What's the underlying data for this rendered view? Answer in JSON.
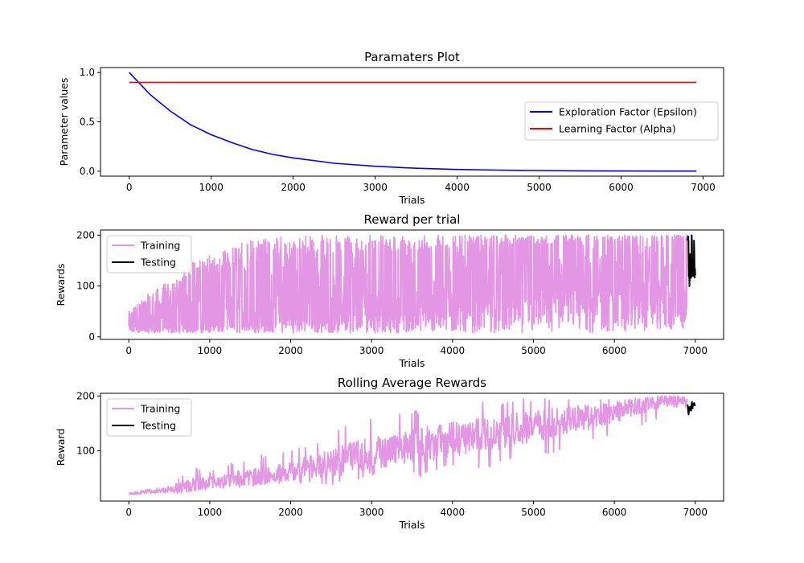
{
  "chart_data": [
    {
      "type": "line",
      "title": "Paramaters Plot",
      "xlabel": "Trials",
      "ylabel": "Parameter values",
      "xlim": [
        -350,
        7250
      ],
      "ylim": [
        -0.05,
        1.05
      ],
      "xticks": [
        0,
        1000,
        2000,
        3000,
        4000,
        5000,
        6000,
        7000
      ],
      "yticks": [
        0.0,
        0.5,
        1.0
      ],
      "ytick_labels": [
        "0.0",
        "0.5",
        "1.0"
      ],
      "grid": false,
      "legend": "center-right",
      "series": [
        {
          "name": "Exploration Factor (Epsilon)",
          "color": "#0000ff",
          "x": [
            0,
            250,
            500,
            750,
            1000,
            1250,
            1500,
            1750,
            2000,
            2500,
            3000,
            3500,
            4000,
            4500,
            5000,
            5500,
            6000,
            6500,
            6920
          ],
          "y": [
            1.0,
            0.78,
            0.61,
            0.47,
            0.37,
            0.29,
            0.22,
            0.17,
            0.135,
            0.08,
            0.05,
            0.03,
            0.018,
            0.011,
            0.007,
            0.004,
            0.002,
            0.001,
            0.001
          ]
        },
        {
          "name": "Learning Factor (Alpha)",
          "color": "#ff0000",
          "x": [
            0,
            6920
          ],
          "y": [
            0.9,
            0.9
          ]
        }
      ]
    },
    {
      "type": "line",
      "title": "Reward per trial",
      "xlabel": "Trials",
      "ylabel": "Rewards",
      "xlim": [
        -350,
        7350
      ],
      "ylim": [
        -5,
        210
      ],
      "xticks": [
        0,
        1000,
        2000,
        3000,
        4000,
        5000,
        6000,
        7000
      ],
      "yticks": [
        0,
        100,
        200
      ],
      "ytick_labels": [
        "0",
        "100",
        "200"
      ],
      "grid": false,
      "legend": "top-left",
      "series": [
        {
          "name": "Training",
          "color": "#e396e3",
          "x": [
            0,
            200,
            400,
            600,
            800,
            1000,
            1200,
            1400,
            1600,
            1800,
            2000,
            2200,
            2400,
            2600,
            2800,
            3000,
            3200,
            3400,
            3600,
            3800,
            4000,
            4200,
            4400,
            4600,
            4800,
            5000,
            5200,
            5400,
            5600,
            5800,
            6000,
            6200,
            6400,
            6600,
            6900
          ],
          "y_low": [
            8,
            8,
            8,
            8,
            8,
            8,
            8,
            8,
            8,
            8,
            8,
            8,
            8,
            8,
            8,
            8,
            8,
            8,
            8,
            8,
            8,
            8,
            8,
            8,
            8,
            8,
            8,
            8,
            8,
            8,
            10,
            10,
            12,
            12,
            10
          ],
          "y_mid": [
            20,
            22,
            25,
            28,
            32,
            35,
            40,
            42,
            45,
            50,
            55,
            60,
            65,
            68,
            72,
            78,
            85,
            90,
            95,
            100,
            105,
            110,
            118,
            122,
            128,
            135,
            140,
            150,
            155,
            160,
            168,
            175,
            180,
            185,
            190
          ],
          "y_high": [
            50,
            80,
            100,
            120,
            150,
            160,
            170,
            185,
            200,
            200,
            200,
            200,
            200,
            200,
            200,
            200,
            200,
            200,
            200,
            200,
            200,
            200,
            200,
            200,
            200,
            200,
            200,
            200,
            200,
            200,
            200,
            200,
            200,
            200,
            200
          ]
        },
        {
          "name": "Testing",
          "color": "#000000",
          "x": [
            6900,
            6920,
            6940,
            6960,
            6980,
            7000
          ],
          "y_low": [
            115,
            100,
            98,
            105,
            100,
            120
          ],
          "y_high": [
            200,
            200,
            200,
            200,
            200,
            200
          ]
        }
      ]
    },
    {
      "type": "line",
      "title": "Rolling Average Rewards",
      "xlabel": "Trials",
      "ylabel": "Reward",
      "xlim": [
        -350,
        7350
      ],
      "ylim": [
        8,
        205
      ],
      "xticks": [
        0,
        1000,
        2000,
        3000,
        4000,
        5000,
        6000,
        7000
      ],
      "yticks": [
        100,
        200
      ],
      "ytick_labels": [
        "100",
        "200"
      ],
      "grid": false,
      "legend": "top-left",
      "series": [
        {
          "name": "Training",
          "color": "#e396e3",
          "x": [
            0,
            200,
            400,
            600,
            800,
            1000,
            1200,
            1400,
            1600,
            1800,
            2000,
            2200,
            2400,
            2600,
            2800,
            3000,
            3200,
            3400,
            3600,
            3800,
            4000,
            4200,
            4400,
            4600,
            4800,
            5000,
            5200,
            5400,
            5600,
            5800,
            6000,
            6200,
            6400,
            6600,
            6900
          ],
          "y_low": [
            20,
            20,
            22,
            22,
            25,
            28,
            30,
            32,
            35,
            38,
            40,
            40,
            35,
            40,
            45,
            55,
            60,
            65,
            50,
            65,
            70,
            75,
            65,
            80,
            85,
            90,
            95,
            100,
            110,
            120,
            130,
            140,
            150,
            155,
            160
          ],
          "y_mid": [
            22,
            25,
            28,
            32,
            38,
            42,
            48,
            50,
            52,
            58,
            62,
            70,
            75,
            80,
            90,
            95,
            100,
            105,
            110,
            115,
            120,
            125,
            128,
            132,
            140,
            145,
            150,
            155,
            160,
            165,
            170,
            178,
            185,
            190,
            188
          ],
          "y_high": [
            28,
            35,
            40,
            50,
            70,
            65,
            75,
            85,
            95,
            90,
            105,
            110,
            120,
            140,
            150,
            160,
            165,
            170,
            175,
            180,
            190,
            185,
            190,
            185,
            195,
            195,
            200,
            200,
            200,
            200,
            200,
            200,
            200,
            200,
            200
          ]
        },
        {
          "name": "Testing",
          "color": "#000000",
          "x": [
            6900,
            6920,
            6940,
            6960,
            6980,
            7000
          ],
          "y_low": [
            160,
            155,
            165,
            170,
            175,
            180
          ],
          "y_high": [
            190,
            192,
            185,
            190,
            188,
            190
          ]
        }
      ]
    }
  ]
}
